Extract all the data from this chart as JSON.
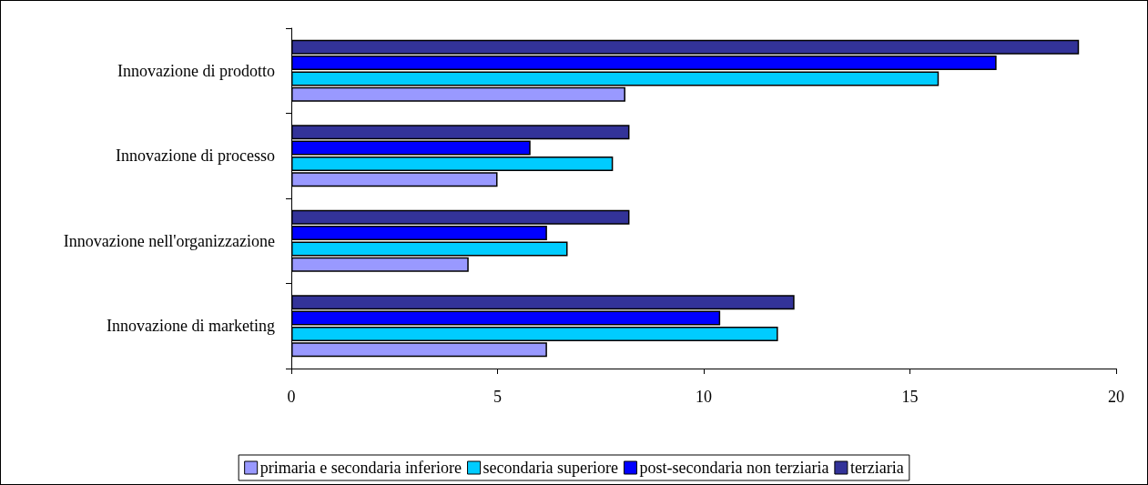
{
  "chart_data": {
    "type": "bar",
    "orientation": "horizontal",
    "categories": [
      "Innovazione di prodotto",
      "Innovazione di processo",
      "Innovazione nell'organizzazione",
      "Innovazione di marketing"
    ],
    "series": [
      {
        "name": "primaria e secondaria inferiore",
        "color": "#9999ff",
        "values": [
          8.1,
          5.0,
          4.3,
          6.2
        ]
      },
      {
        "name": "secondaria superiore",
        "color": "#00ccff",
        "values": [
          15.7,
          7.8,
          6.7,
          11.8
        ]
      },
      {
        "name": "post-secondaria non terziaria",
        "color": "#0000ff",
        "values": [
          17.1,
          5.8,
          6.2,
          10.4
        ]
      },
      {
        "name": "terziaria",
        "color": "#333399",
        "values": [
          19.1,
          8.2,
          8.2,
          12.2
        ]
      }
    ],
    "xlim": [
      0,
      20
    ],
    "xticks": [
      0,
      5,
      10,
      15,
      20
    ],
    "grid": false,
    "legend": "bottom"
  }
}
